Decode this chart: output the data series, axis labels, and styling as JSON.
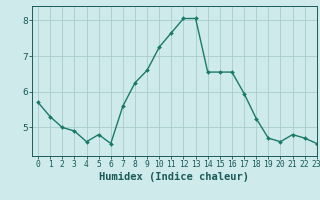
{
  "x": [
    0,
    1,
    2,
    3,
    4,
    5,
    6,
    7,
    8,
    9,
    10,
    11,
    12,
    13,
    14,
    15,
    16,
    17,
    18,
    19,
    20,
    21,
    22,
    23
  ],
  "y": [
    5.7,
    5.3,
    5.0,
    4.9,
    4.6,
    4.8,
    4.55,
    5.6,
    6.25,
    6.6,
    7.25,
    7.65,
    8.05,
    8.05,
    6.55,
    6.55,
    6.55,
    5.95,
    5.25,
    4.7,
    4.6,
    4.8,
    4.7,
    4.55
  ],
  "xlabel": "Humidex (Indice chaleur)",
  "xlim": [
    -0.5,
    23
  ],
  "ylim": [
    4.2,
    8.4
  ],
  "yticks": [
    5,
    6,
    7,
    8
  ],
  "xticks": [
    0,
    1,
    2,
    3,
    4,
    5,
    6,
    7,
    8,
    9,
    10,
    11,
    12,
    13,
    14,
    15,
    16,
    17,
    18,
    19,
    20,
    21,
    22,
    23
  ],
  "line_color": "#1a7a6a",
  "marker": "D",
  "marker_size": 2.0,
  "bg_color": "#ceeaea",
  "grid_color": "#a8cccc",
  "tick_color": "#1a5a5a",
  "label_color": "#1a5a5a",
  "line_width": 1.0,
  "tick_fontsize": 5.8,
  "xlabel_fontsize": 7.5
}
